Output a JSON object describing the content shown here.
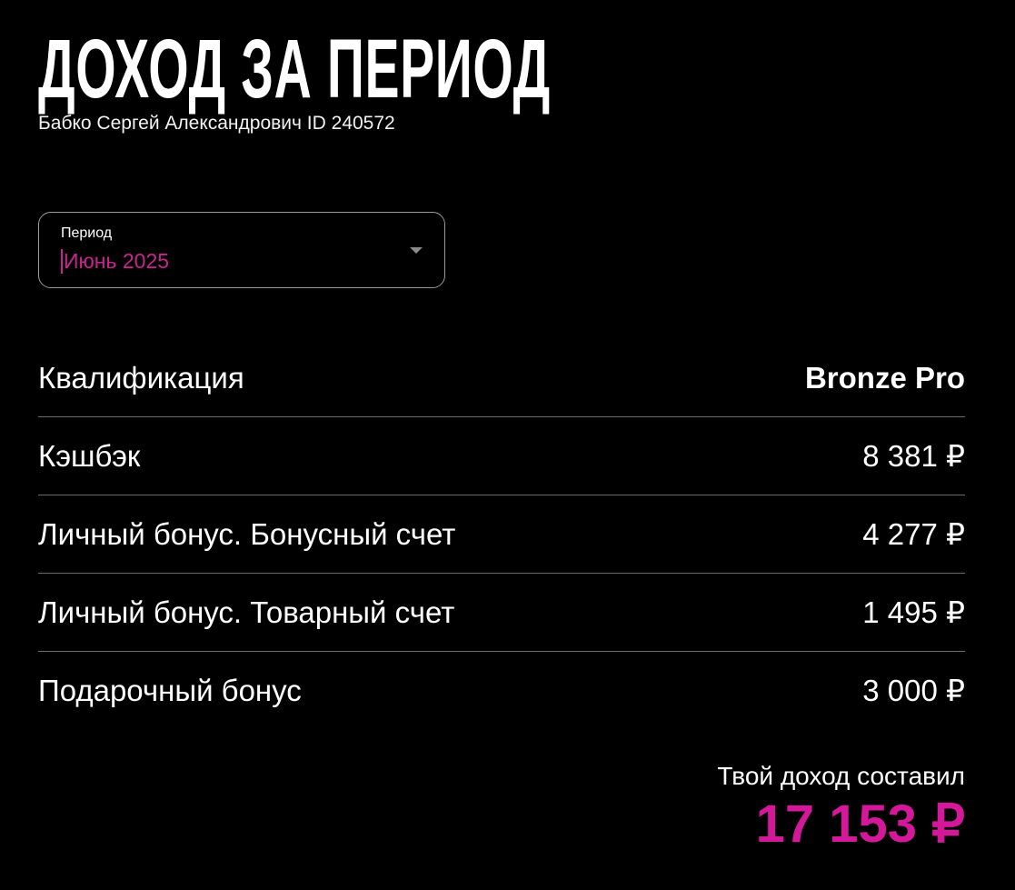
{
  "header": {
    "title": "ДОХОД ЗА ПЕРИОД",
    "subtitle": "Бабко Сергей Александрович ID 240572"
  },
  "period": {
    "label": "Период",
    "value": "Июнь 2025",
    "icon": "caret-down-icon"
  },
  "rows": [
    {
      "label": "Квалификация",
      "value": "Bronze Pro"
    },
    {
      "label": "Кэшбэк",
      "value": "8 381 ₽"
    },
    {
      "label": "Личный бонус. Бонусный счет",
      "value": "4 277 ₽"
    },
    {
      "label": "Личный бонус. Товарный счет",
      "value": "1 495 ₽"
    },
    {
      "label": "Подарочный бонус",
      "value": "3 000 ₽"
    }
  ],
  "total": {
    "label": "Твой доход составил",
    "value": "17 153 ₽"
  },
  "colors": {
    "accent": "#d4189a",
    "background": "#000000"
  }
}
